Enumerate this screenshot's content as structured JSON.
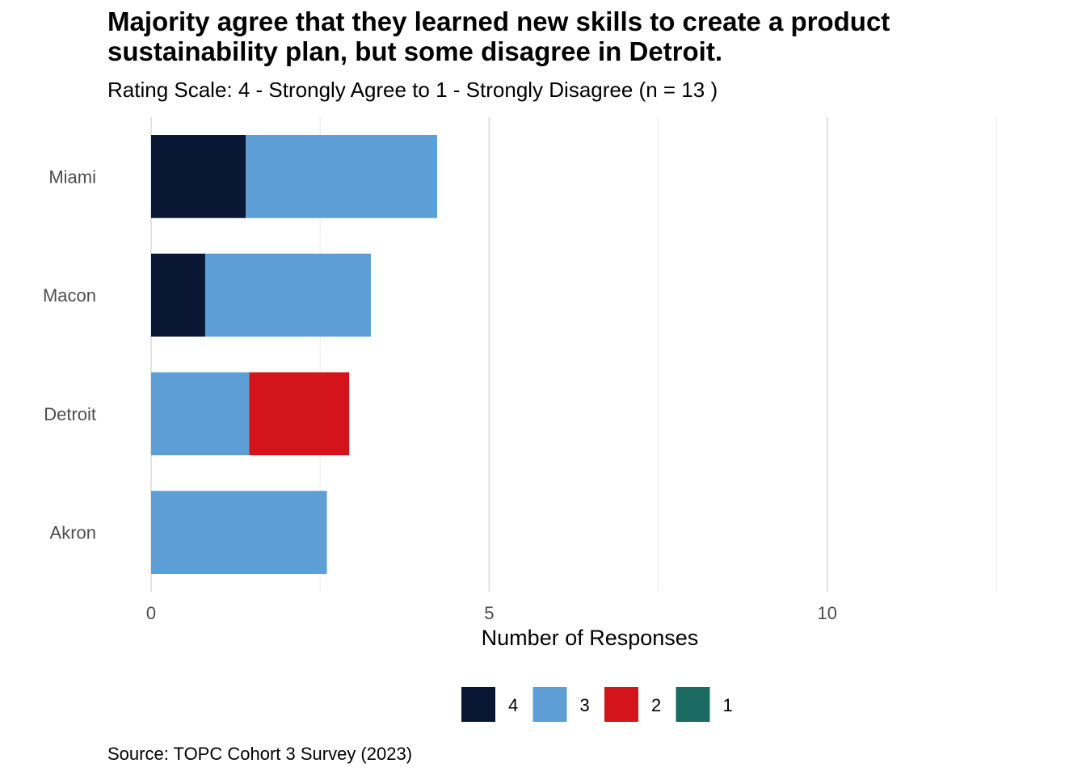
{
  "chart_data": {
    "type": "bar",
    "orientation": "horizontal",
    "stacked": true,
    "title": "Majority agree that they learned new skills to create a product sustainability plan, but some disagree in Detroit.",
    "subtitle": "Rating Scale: 4 - Strongly Agree to 1 - Strongly Disagree (n = 13 )",
    "caption": "Source: TOPC Cohort 3 Survey (2023)",
    "xlabel": "Number of Responses",
    "ylabel": "",
    "xlim": [
      0,
      12.5
    ],
    "xticks": [
      0,
      5,
      10
    ],
    "grid": true,
    "legend_position": "bottom",
    "categories": [
      "Akron",
      "Detroit",
      "Macon",
      "Miami"
    ],
    "series": [
      {
        "name": "4",
        "color": "#0A1734",
        "values": [
          0,
          0,
          0.8,
          1.4
        ]
      },
      {
        "name": "3",
        "color": "#5E9ED6",
        "values": [
          2.6,
          1.45,
          2.45,
          2.83
        ]
      },
      {
        "name": "2",
        "color": "#D3141A",
        "values": [
          0,
          1.48,
          0,
          0
        ]
      },
      {
        "name": "1",
        "color": "#1B6B62",
        "values": [
          0,
          0,
          0,
          0
        ]
      }
    ]
  }
}
